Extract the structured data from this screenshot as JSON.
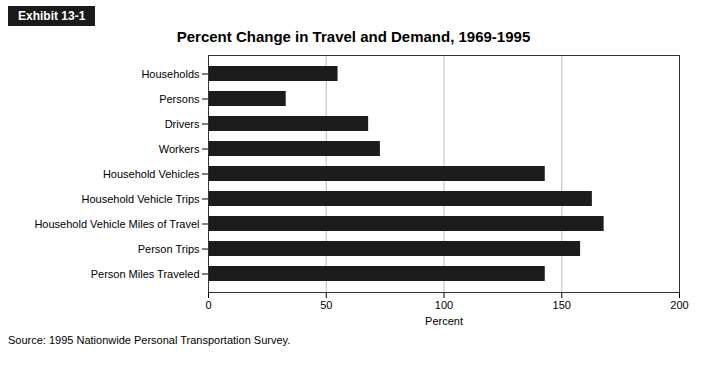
{
  "chart_data": {
    "type": "bar",
    "orientation": "horizontal",
    "title": "Percent Change in Travel and Demand, 1969-1995",
    "categories": [
      "Households",
      "Persons",
      "Drivers",
      "Workers",
      "Household Vehicles",
      "Household Vehicle Trips",
      "Household Vehicle Miles of Travel",
      "Person Trips",
      "Person Miles Traveled"
    ],
    "values": [
      55,
      33,
      68,
      73,
      143,
      163,
      168,
      158,
      143
    ],
    "color": "#1c1c1c",
    "xlim": [
      0,
      200
    ],
    "xticks": [
      0,
      50,
      100,
      150,
      200
    ],
    "xlabel": "Percent",
    "grid": true,
    "annotations": [
      "Exhibit 13-1",
      "Source: 1995 Nationwide Personal Transportation Survey."
    ]
  }
}
